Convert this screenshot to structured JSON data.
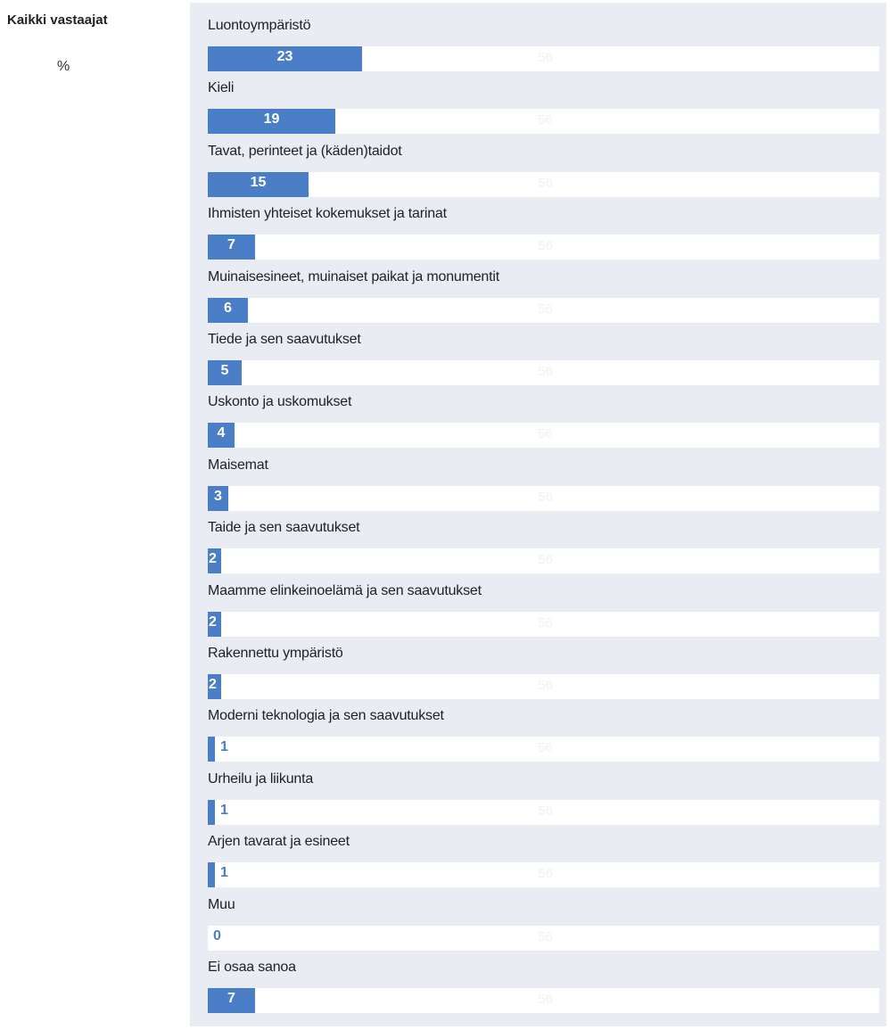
{
  "sidebar": {
    "title": "Kaikki vastaajat",
    "unit": "%"
  },
  "chart_data": {
    "type": "bar",
    "orientation": "horizontal",
    "xlim": [
      0,
      100
    ],
    "ghost_value": "56",
    "colors": {
      "bar": "#4a7ec7",
      "track": "#ffffff",
      "panel": "#e9ecf3"
    },
    "categories": [
      "Luontoympäristö",
      "Kieli",
      "Tavat, perinteet ja (käden)taidot",
      "Ihmisten yhteiset kokemukset ja tarinat",
      "Muinaisesineet, muinaiset paikat ja monumentit",
      "Tiede ja sen saavutukset",
      "Uskonto ja uskomukset",
      "Maisemat",
      "Taide ja sen saavutukset",
      "Maamme elinkeinoelämä ja sen saavutukset",
      "Rakennettu ympäristö",
      "Moderni teknologia ja sen saavutukset",
      "Urheilu ja liikunta",
      "Arjen tavarat ja esineet",
      "Muu",
      "Ei osaa sanoa"
    ],
    "values": [
      23,
      19,
      15,
      7,
      6,
      5,
      4,
      3,
      2,
      2,
      2,
      1,
      1,
      1,
      0,
      7
    ]
  }
}
